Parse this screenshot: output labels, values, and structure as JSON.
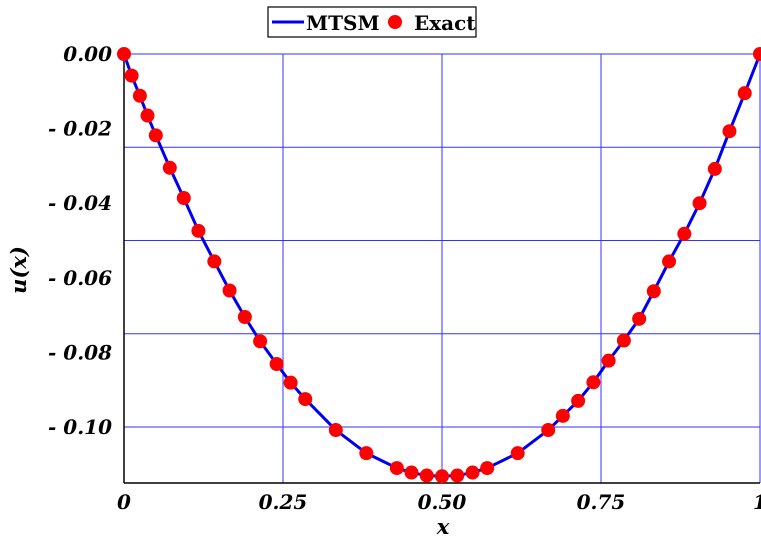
{
  "chart_data": {
    "type": "line",
    "title": "",
    "xlabel": "x",
    "ylabel": "u(x)",
    "xlim": [
      0,
      1
    ],
    "ylim": [
      -0.115,
      0.0
    ],
    "grid": true,
    "legend_position": "top-center",
    "x_ticks": [
      {
        "value": 0,
        "label": "0"
      },
      {
        "value": 0.25,
        "label": "0.25"
      },
      {
        "value": 0.5,
        "label": "0.50"
      },
      {
        "value": 0.75,
        "label": "0.75"
      },
      {
        "value": 1,
        "label": "1"
      }
    ],
    "y_ticks": [
      {
        "value": 0.0,
        "label": "0.00"
      },
      {
        "value": -0.02,
        "label": "- 0.02"
      },
      {
        "value": -0.04,
        "label": "- 0.04"
      },
      {
        "value": -0.06,
        "label": "- 0.06"
      },
      {
        "value": -0.08,
        "label": "- 0.08"
      },
      {
        "value": -0.1,
        "label": "- 0.10"
      }
    ],
    "grid_x": [
      0,
      0.25,
      0.5,
      0.75,
      1.0
    ],
    "grid_y": [
      0.0,
      -0.025,
      -0.05,
      -0.075,
      -0.1
    ],
    "series": [
      {
        "name": "MTSM",
        "style": "line",
        "color": "#0000ee",
        "points": [
          [
            0.0,
            0.0
          ],
          [
            0.025,
            -0.0109
          ],
          [
            0.05,
            -0.0212
          ],
          [
            0.075,
            -0.0309
          ],
          [
            0.1,
            -0.04
          ],
          [
            0.125,
            -0.0484
          ],
          [
            0.15,
            -0.0563
          ],
          [
            0.175,
            -0.0635
          ],
          [
            0.2,
            -0.07
          ],
          [
            0.225,
            -0.0759
          ],
          [
            0.25,
            -0.0812
          ],
          [
            0.275,
            -0.0859
          ],
          [
            0.3,
            -0.09
          ],
          [
            0.325,
            -0.0934
          ],
          [
            0.35,
            -0.0963
          ],
          [
            0.375,
            -0.0984
          ],
          [
            0.4,
            -0.1
          ],
          [
            0.425,
            -0.1009
          ],
          [
            0.45,
            -0.1013
          ],
          [
            0.5,
            -0.1134
          ],
          [
            0.55,
            -0.1113
          ],
          [
            0.575,
            -0.1109
          ],
          [
            0.6,
            -0.107
          ],
          [
            0.625,
            -0.106
          ],
          [
            0.65,
            -0.103
          ],
          [
            0.675,
            -0.099
          ],
          [
            0.7,
            -0.095
          ],
          [
            0.725,
            -0.09
          ],
          [
            0.75,
            -0.084
          ],
          [
            0.775,
            -0.078
          ],
          [
            0.8,
            -0.072
          ],
          [
            0.825,
            -0.065
          ],
          [
            0.85,
            -0.057
          ],
          [
            0.875,
            -0.049
          ],
          [
            0.9,
            -0.04
          ],
          [
            0.925,
            -0.031
          ],
          [
            0.95,
            -0.021
          ],
          [
            0.975,
            -0.0106
          ],
          [
            1.0,
            0.0
          ]
        ]
      },
      {
        "name": "Exact",
        "style": "markers",
        "color": "#ff0000",
        "points": [
          [
            0.0,
            0.0
          ],
          [
            0.012,
            -0.0058
          ],
          [
            0.025,
            -0.0112
          ],
          [
            0.037,
            -0.0165
          ],
          [
            0.05,
            -0.0218
          ],
          [
            0.072,
            -0.0305
          ],
          [
            0.094,
            -0.0386
          ],
          [
            0.117,
            -0.0474
          ],
          [
            0.142,
            -0.0556
          ],
          [
            0.166,
            -0.0634
          ],
          [
            0.19,
            -0.0705
          ],
          [
            0.214,
            -0.077
          ],
          [
            0.24,
            -0.0831
          ],
          [
            0.262,
            -0.0881
          ],
          [
            0.285,
            -0.0925
          ],
          [
            0.333,
            -0.1008
          ],
          [
            0.381,
            -0.107
          ],
          [
            0.429,
            -0.111
          ],
          [
            0.452,
            -0.1122
          ],
          [
            0.476,
            -0.113
          ],
          [
            0.5,
            -0.1132
          ],
          [
            0.524,
            -0.113
          ],
          [
            0.548,
            -0.1122
          ],
          [
            0.571,
            -0.111
          ],
          [
            0.619,
            -0.107
          ],
          [
            0.667,
            -0.1008
          ],
          [
            0.69,
            -0.097
          ],
          [
            0.714,
            -0.093
          ],
          [
            0.738,
            -0.088
          ],
          [
            0.762,
            -0.0822
          ],
          [
            0.786,
            -0.0768
          ],
          [
            0.81,
            -0.071
          ],
          [
            0.833,
            -0.0636
          ],
          [
            0.857,
            -0.0556
          ],
          [
            0.881,
            -0.0482
          ],
          [
            0.905,
            -0.04
          ],
          [
            0.929,
            -0.0308
          ],
          [
            0.952,
            -0.0207
          ],
          [
            0.976,
            -0.0105
          ],
          [
            1.0,
            0.0
          ]
        ]
      }
    ],
    "legend": {
      "entries": [
        {
          "label": "MTSM",
          "symbol": "line",
          "color": "#0000ee"
        },
        {
          "label": "Exact",
          "symbol": "dot",
          "color": "#ff0000"
        }
      ]
    }
  }
}
